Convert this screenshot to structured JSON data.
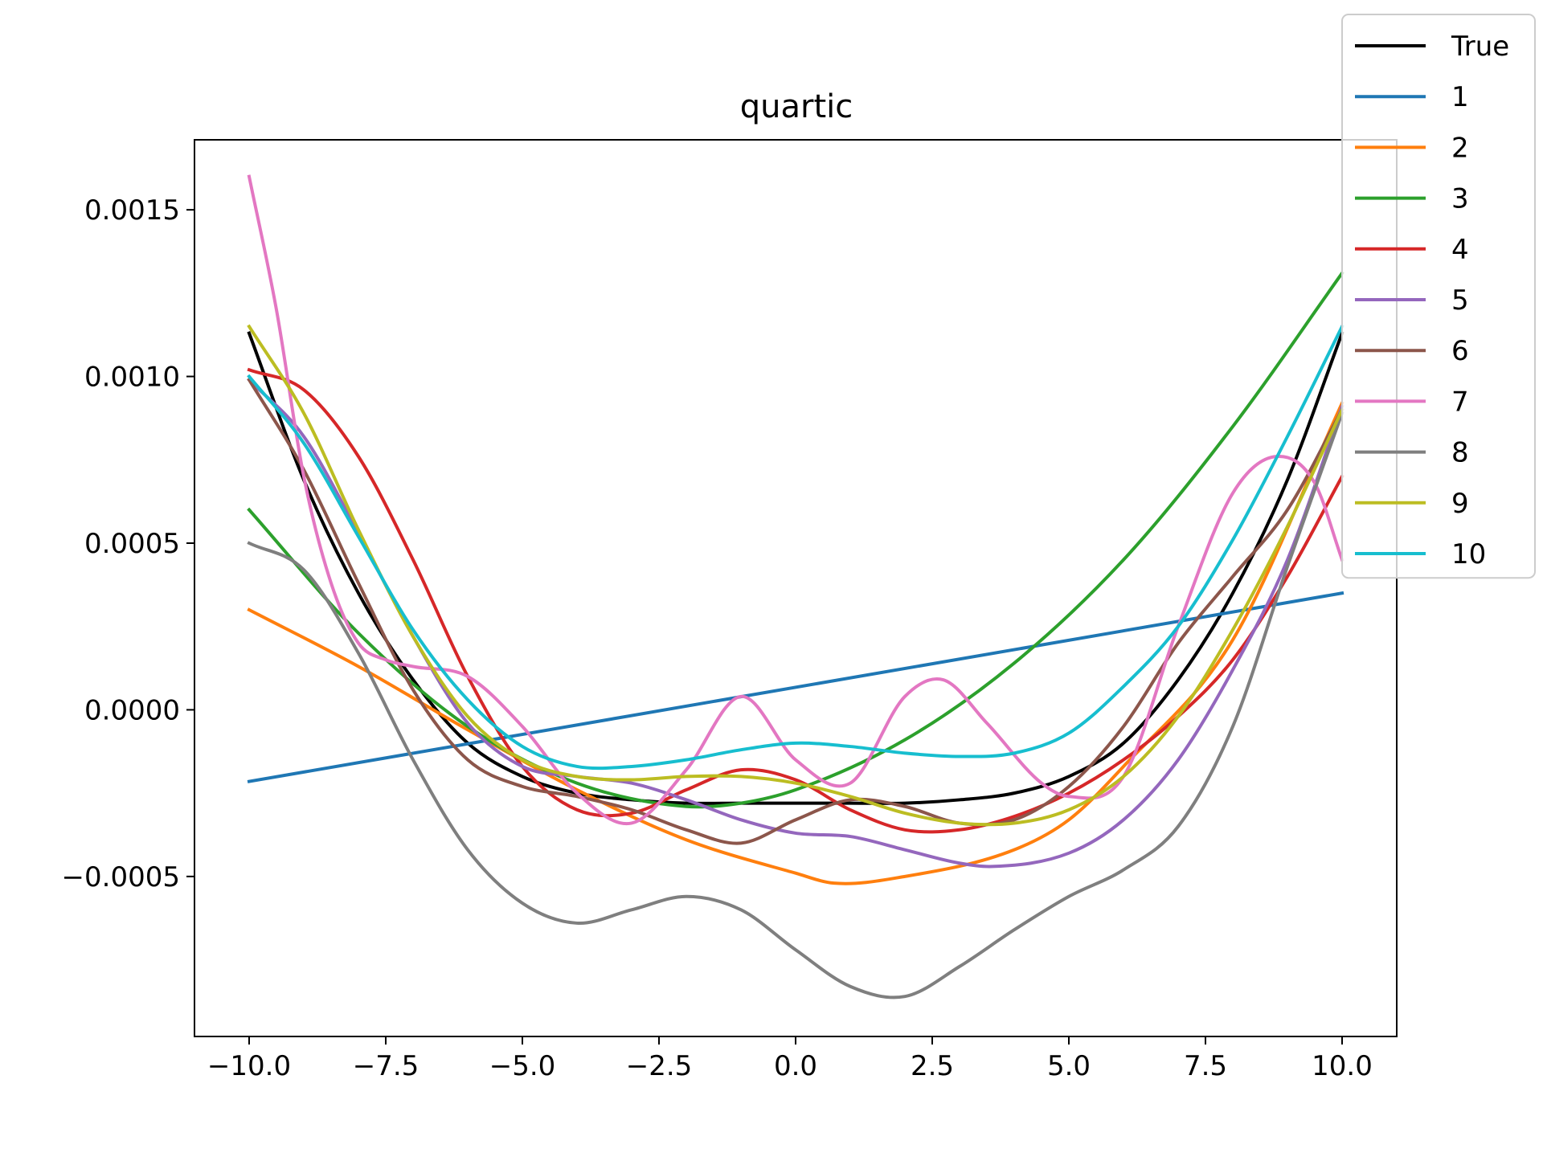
{
  "chart_data": {
    "type": "line",
    "title": "quartic",
    "xlabel": "",
    "ylabel": "",
    "xlim": [
      -11,
      11
    ],
    "ylim": [
      -0.00098,
      0.00171
    ],
    "xticks": [
      -10.0,
      -7.5,
      -5.0,
      -2.5,
      0.0,
      2.5,
      5.0,
      7.5,
      10.0
    ],
    "xtick_labels": [
      "−10.0",
      "−7.5",
      "−5.0",
      "−2.5",
      "0.0",
      "2.5",
      "5.0",
      "7.5",
      "10.0"
    ],
    "yticks": [
      -0.0005,
      0.0,
      0.0005,
      0.001,
      0.0015
    ],
    "ytick_labels": [
      "−0.0005",
      "0.0000",
      "0.0005",
      "0.0010",
      "0.0015"
    ],
    "legend_position": "top-right",
    "series": [
      {
        "name": "True",
        "color": "#000000",
        "x": [
          -10,
          -9,
          -8,
          -7,
          -6,
          -5,
          -4,
          -3,
          -2,
          -1,
          0,
          1,
          2,
          3,
          4,
          5,
          6,
          7,
          8,
          9,
          10
        ],
        "y": [
          0.00113,
          0.00069,
          0.00035,
          9e-05,
          -0.0001,
          -0.0002,
          -0.00025,
          -0.00027,
          -0.00028,
          -0.00028,
          -0.00028,
          -0.00028,
          -0.00028,
          -0.00027,
          -0.00025,
          -0.0002,
          -0.0001,
          9e-05,
          0.00035,
          0.00069,
          0.00113
        ]
      },
      {
        "name": "1",
        "color": "#1f77b4",
        "x": [
          -10,
          10
        ],
        "y": [
          -0.000215,
          0.00035
        ]
      },
      {
        "name": "2",
        "color": "#ff7f0e",
        "x": [
          -10,
          -8,
          -6,
          -4,
          -2,
          0,
          0.7,
          2,
          4,
          5,
          6,
          8,
          10
        ],
        "y": [
          0.0003,
          0.00013,
          -6e-05,
          -0.00024,
          -0.00039,
          -0.00049,
          -0.00052,
          -0.0005,
          -0.00042,
          -0.00033,
          -0.00017,
          0.00021,
          0.00092
        ]
      },
      {
        "name": "3",
        "color": "#2ca02c",
        "x": [
          -10,
          -8,
          -6,
          -4,
          -2,
          -1,
          0,
          2,
          4,
          6,
          8,
          10
        ],
        "y": [
          0.0006,
          0.00023,
          -5e-05,
          -0.00022,
          -0.00029,
          -0.00028,
          -0.00024,
          -9e-05,
          0.00014,
          0.00045,
          0.00085,
          0.00131
        ]
      },
      {
        "name": "4",
        "color": "#d62728",
        "x": [
          -10,
          -9,
          -8,
          -7,
          -6,
          -5,
          -4,
          -3,
          -2,
          -1,
          0,
          1,
          2,
          3,
          4,
          5,
          6,
          7,
          8,
          9,
          10
        ],
        "y": [
          0.00102,
          0.00096,
          0.00076,
          0.00045,
          0.0001,
          -0.00017,
          -0.0003,
          -0.00031,
          -0.00024,
          -0.00018,
          -0.00021,
          -0.0003,
          -0.00036,
          -0.00036,
          -0.00032,
          -0.00025,
          -0.00015,
          -2e-05,
          0.00015,
          0.0004,
          0.0007
        ]
      },
      {
        "name": "5",
        "color": "#9467bd",
        "x": [
          -10,
          -9,
          -8,
          -7,
          -6,
          -5,
          -4,
          -3,
          -2,
          -1,
          0,
          1,
          2,
          3,
          3.6,
          5,
          6,
          7,
          8,
          9,
          10
        ],
        "y": [
          0.00099,
          0.00082,
          0.00053,
          0.00022,
          -4e-05,
          -0.00017,
          -0.0002,
          -0.00022,
          -0.00027,
          -0.00033,
          -0.00037,
          -0.00038,
          -0.00042,
          -0.00046,
          -0.00047,
          -0.00043,
          -0.00033,
          -0.00015,
          0.00012,
          0.00045,
          0.00091
        ]
      },
      {
        "name": "6",
        "color": "#8c564b",
        "x": [
          -10,
          -9,
          -8,
          -7,
          -6,
          -5,
          -4,
          -3,
          -2,
          -1,
          0,
          1,
          2,
          3,
          4,
          5,
          6,
          7,
          8,
          9,
          10
        ],
        "y": [
          0.00099,
          0.00072,
          0.00038,
          6e-05,
          -0.00015,
          -0.00023,
          -0.00026,
          -0.0003,
          -0.00036,
          -0.0004,
          -0.00033,
          -0.00027,
          -0.00029,
          -0.00034,
          -0.00033,
          -0.00023,
          -5e-05,
          0.0002,
          0.0004,
          0.0006,
          0.0009
        ]
      },
      {
        "name": "7",
        "color": "#e377c2",
        "x": [
          -10,
          -9.5,
          -9,
          -8.5,
          -8,
          -7.5,
          -7,
          -6,
          -5,
          -4,
          -3,
          -2,
          -1,
          0,
          1,
          2,
          2.7,
          3.5,
          4.5,
          5,
          6,
          7,
          8,
          8.8,
          9.5,
          10
        ],
        "y": [
          0.0016,
          0.0012,
          0.0007,
          0.00038,
          0.0002,
          0.00015,
          0.00013,
          0.0001,
          -5e-05,
          -0.00025,
          -0.00034,
          -0.00018,
          4e-05,
          -0.00015,
          -0.00022,
          4e-05,
          9e-05,
          -4e-05,
          -0.00022,
          -0.00026,
          -0.0002,
          0.00025,
          0.00065,
          0.00076,
          0.00068,
          0.00045
        ]
      },
      {
        "name": "8",
        "color": "#7f7f7f",
        "x": [
          -10,
          -9,
          -8,
          -7,
          -6,
          -5,
          -4,
          -3,
          -2,
          -1,
          0,
          1,
          2,
          3,
          4,
          5,
          6,
          7,
          8,
          9,
          10
        ],
        "y": [
          0.0005,
          0.00042,
          0.00017,
          -0.00015,
          -0.00042,
          -0.00058,
          -0.00064,
          -0.0006,
          -0.00056,
          -0.0006,
          -0.00072,
          -0.00083,
          -0.00086,
          -0.00077,
          -0.00066,
          -0.00056,
          -0.00048,
          -0.00035,
          -5e-05,
          0.00043,
          0.00089
        ]
      },
      {
        "name": "9",
        "color": "#bcbd22",
        "x": [
          -10,
          -9,
          -8,
          -7,
          -6,
          -5,
          -4,
          -3,
          -2,
          -1,
          0,
          1,
          2,
          3,
          4,
          5,
          6,
          7,
          8,
          9,
          10
        ],
        "y": [
          0.00115,
          0.00089,
          0.00054,
          0.00022,
          -2e-05,
          -0.00015,
          -0.0002,
          -0.00021,
          -0.0002,
          -0.0002,
          -0.00022,
          -0.00026,
          -0.00031,
          -0.00034,
          -0.00034,
          -0.0003,
          -0.0002,
          -2e-05,
          0.00024,
          0.00055,
          0.0009
        ]
      },
      {
        "name": "10",
        "color": "#17becf",
        "x": [
          -10,
          -9,
          -8,
          -7,
          -6,
          -5,
          -4,
          -3,
          -2,
          -1,
          0,
          1,
          2,
          3,
          4,
          5,
          6,
          7,
          8,
          9,
          10
        ],
        "y": [
          0.001,
          0.0008,
          0.00052,
          0.00024,
          3e-05,
          -0.00011,
          -0.00017,
          -0.00017,
          -0.00015,
          -0.00012,
          -0.0001,
          -0.00011,
          -0.00013,
          -0.00014,
          -0.00013,
          -7e-05,
          7e-05,
          0.00025,
          0.00051,
          0.00082,
          0.00115
        ]
      }
    ]
  }
}
